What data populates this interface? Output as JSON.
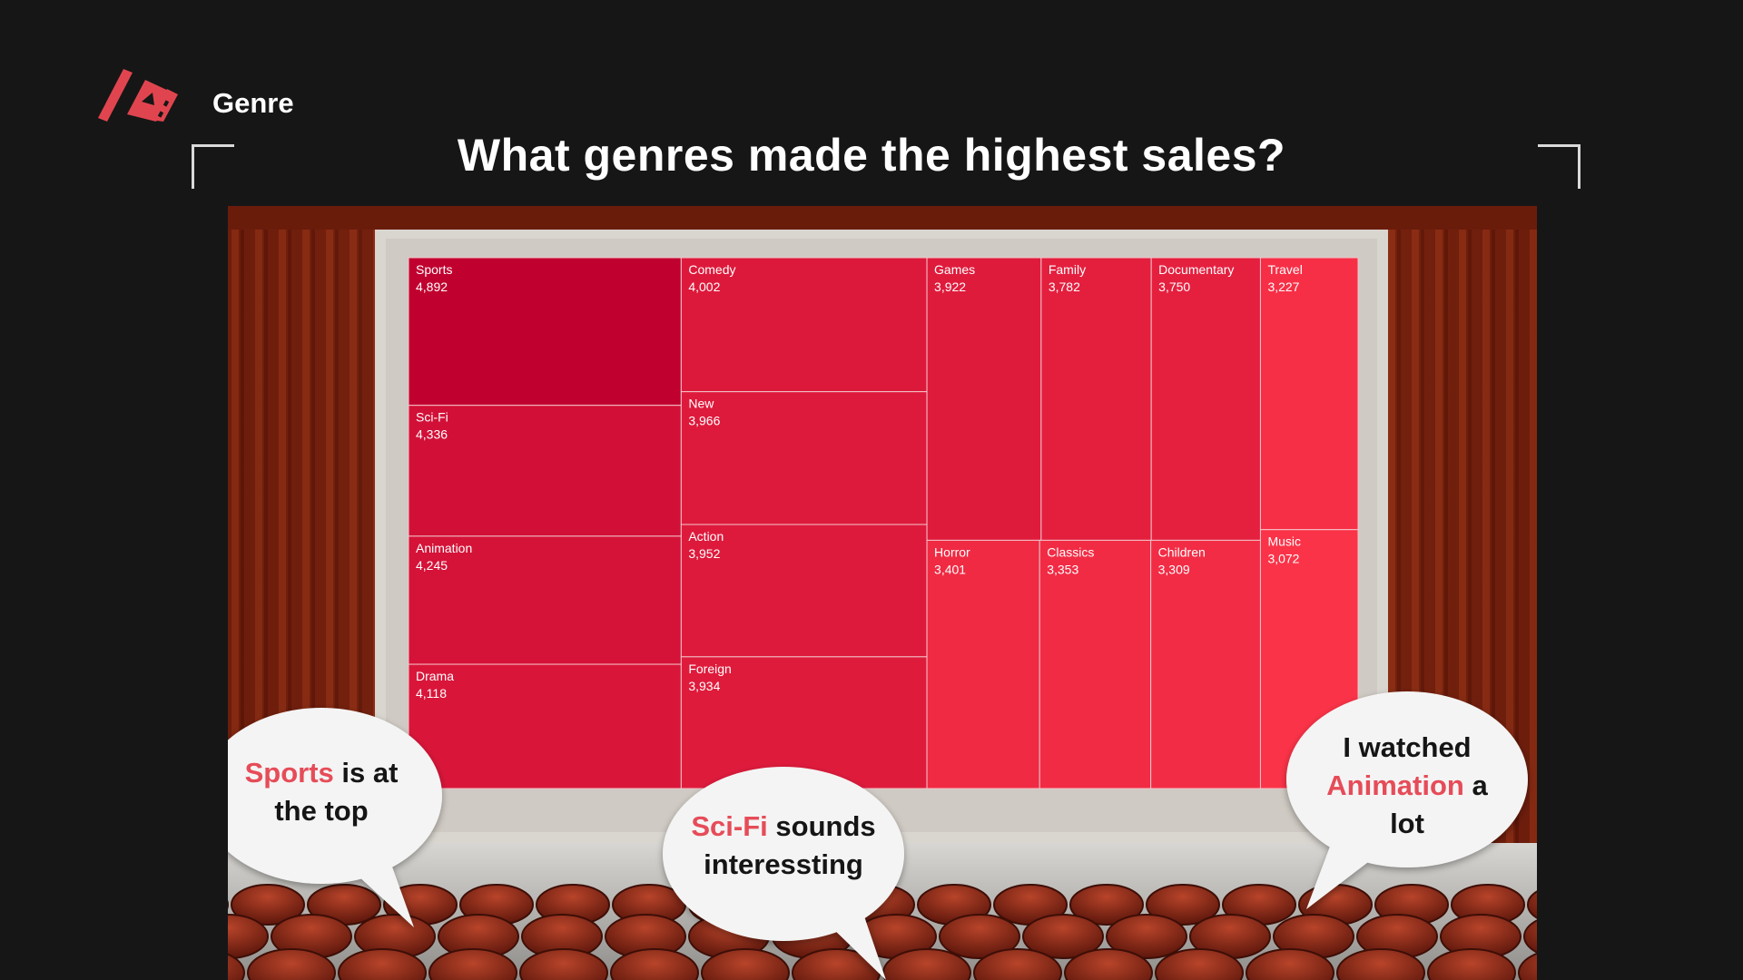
{
  "header": {
    "section_label": "Genre",
    "logo_icon": "film-strip-icon",
    "title": "What genres made the highest sales?"
  },
  "colors": {
    "background": "#161616",
    "cell_darkest": "#c0002f",
    "cell_lightest": "#fb3348",
    "accent_text": "#e64c58"
  },
  "chart_data": {
    "type": "treemap",
    "title": "What genres made the highest sales?",
    "color_encoding": "darker red = higher sales",
    "items": [
      {
        "name": "Sports",
        "value": 4892,
        "label": "4,892"
      },
      {
        "name": "Sci-Fi",
        "value": 4336,
        "label": "4,336"
      },
      {
        "name": "Animation",
        "value": 4245,
        "label": "4,245"
      },
      {
        "name": "Drama",
        "value": 4118,
        "label": "4,118"
      },
      {
        "name": "Comedy",
        "value": 4002,
        "label": "4,002"
      },
      {
        "name": "New",
        "value": 3966,
        "label": "3,966"
      },
      {
        "name": "Action",
        "value": 3952,
        "label": "3,952"
      },
      {
        "name": "Foreign",
        "value": 3934,
        "label": "3,934"
      },
      {
        "name": "Games",
        "value": 3922,
        "label": "3,922"
      },
      {
        "name": "Family",
        "value": 3782,
        "label": "3,782"
      },
      {
        "name": "Documentary",
        "value": 3750,
        "label": "3,750"
      },
      {
        "name": "Horror",
        "value": 3401,
        "label": "3,401"
      },
      {
        "name": "Classics",
        "value": 3353,
        "label": "3,353"
      },
      {
        "name": "Children",
        "value": 3309,
        "label": "3,309"
      },
      {
        "name": "Travel",
        "value": 3227,
        "label": "3,227"
      },
      {
        "name": "Music",
        "value": 3072,
        "label": "3,072"
      }
    ]
  },
  "bubbles": [
    {
      "lines": [
        [
          {
            "t": "Sports",
            "accent": true
          },
          {
            "t": " is at",
            "accent": false
          }
        ],
        [
          {
            "t": "the top",
            "accent": false
          }
        ]
      ]
    },
    {
      "lines": [
        [
          {
            "t": "Sci-Fi",
            "accent": true
          },
          {
            "t": " sounds",
            "accent": false
          }
        ],
        [
          {
            "t": "interessting",
            "accent": false
          }
        ]
      ]
    },
    {
      "lines": [
        [
          {
            "t": "I watched",
            "accent": false
          }
        ],
        [
          {
            "t": "Animation",
            "accent": true
          },
          {
            "t": " a",
            "accent": false
          }
        ],
        [
          {
            "t": "lot",
            "accent": false
          }
        ]
      ]
    }
  ]
}
